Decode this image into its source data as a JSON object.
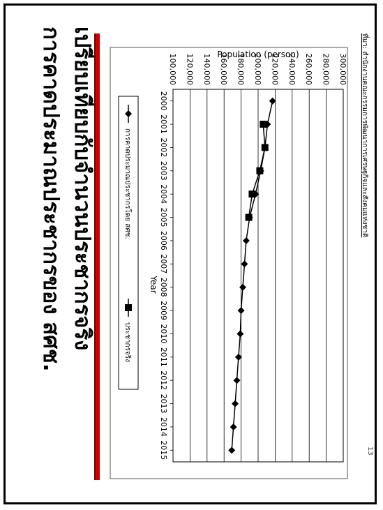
{
  "slide": {
    "title_line1": "การคาดประมาณประชากรของ สศช.",
    "title_line2": "เปรียบเทียบกับจำนวนประชากรจริง",
    "page_number": "13",
    "source_note": "ที่มา: สำนักงานคณะกรรมการพัฒนาการเศรษฐกิจและสังคมแห่งชาติ",
    "accent_color": "#cc0000"
  },
  "chart_data": {
    "type": "line",
    "title": "",
    "xlabel": "Year",
    "ylabel": "Population (person)",
    "ylim": [
      100000,
      300000
    ],
    "y_ticks": [
      "100,000",
      "120,000",
      "140,000",
      "160,000",
      "180,000",
      "200,000",
      "220,000",
      "240,000",
      "260,000",
      "280,000",
      "300,000"
    ],
    "categories": [
      "2000",
      "2001",
      "2002",
      "2003",
      "2004",
      "2005",
      "2006",
      "2007",
      "2008",
      "2009",
      "2010",
      "2011",
      "2012",
      "2013",
      "2014",
      "2015"
    ],
    "grid": true,
    "legend_position": "top",
    "series": [
      {
        "name": "การคาดประมาณประชากรโดย สศช.",
        "marker": "diamond",
        "color": "#000000",
        "values": [
          217000,
          211000,
          208000,
          203000,
          197000,
          190000,
          186000,
          184000,
          182000,
          180000,
          179000,
          177000,
          175000,
          173000,
          171000,
          169000
        ]
      },
      {
        "name": "ประชากรจริง",
        "marker": "square",
        "color": "#000000",
        "values": [
          null,
          206000,
          208000,
          202000,
          193000,
          189000,
          null,
          null,
          null,
          null,
          null,
          null,
          null,
          null,
          null,
          null
        ]
      }
    ]
  }
}
